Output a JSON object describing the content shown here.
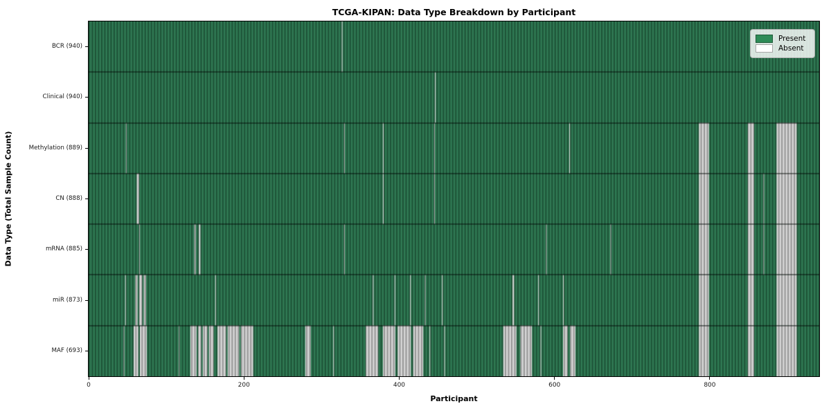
{
  "title": "TCGA-KIPAN: Data Type Breakdown by Participant",
  "xlabel": "Participant",
  "ylabel": "Data Type (Total Sample Count)",
  "legend": {
    "present_label": "Present",
    "absent_label": "Absent",
    "position": "upper right"
  },
  "colors": {
    "present_legend": "#2e8b57",
    "absent_legend": "#ffffff",
    "present_base": "#2b7750",
    "absent_base": "#d6d6d6",
    "row_separator": "rgba(0,0,0,0.85)",
    "axis": "#000000"
  },
  "chart_data": {
    "type": "heatmap",
    "title": "TCGA-KIPAN: Data Type Breakdown by Participant",
    "xlabel": "Participant",
    "ylabel": "Data Type (Total Sample Count)",
    "legend_entries": [
      "Present",
      "Absent"
    ],
    "legend_position": "upper right",
    "grid": false,
    "n_participants": 941,
    "xlim": [
      0,
      941
    ],
    "x_ticks": [
      0,
      200,
      400,
      600,
      800
    ],
    "value_encoding": {
      "present": 1,
      "absent": 0
    },
    "rows": [
      {
        "label": "BCR (940)",
        "data_type": "BCR",
        "present_count": 940,
        "absent_ranges": [
          [
            326,
            326
          ]
        ]
      },
      {
        "label": "Clinical (940)",
        "data_type": "Clinical",
        "present_count": 940,
        "absent_ranges": [
          [
            446,
            446
          ]
        ]
      },
      {
        "label": "Methylation (889)",
        "data_type": "Methylation",
        "present_count": 889,
        "absent_ranges": [
          [
            48,
            48
          ],
          [
            329,
            329
          ],
          [
            379,
            379
          ],
          [
            445,
            445
          ],
          [
            619,
            619
          ],
          [
            786,
            798
          ],
          [
            849,
            856
          ],
          [
            886,
            911
          ]
        ]
      },
      {
        "label": "CN (888)",
        "data_type": "CN",
        "present_count": 888,
        "absent_ranges": [
          [
            62,
            64
          ],
          [
            379,
            379
          ],
          [
            445,
            445
          ],
          [
            786,
            798
          ],
          [
            849,
            856
          ],
          [
            869,
            869
          ],
          [
            886,
            911
          ]
        ]
      },
      {
        "label": "mRNA (885)",
        "data_type": "mRNA",
        "present_count": 885,
        "absent_ranges": [
          [
            65,
            65
          ],
          [
            136,
            137
          ],
          [
            142,
            143
          ],
          [
            329,
            329
          ],
          [
            589,
            589
          ],
          [
            672,
            672
          ],
          [
            786,
            798
          ],
          [
            849,
            856
          ],
          [
            869,
            869
          ],
          [
            886,
            911
          ]
        ]
      },
      {
        "label": "miR (873)",
        "data_type": "miR",
        "present_count": 873,
        "absent_ranges": [
          [
            47,
            47
          ],
          [
            60,
            62
          ],
          [
            65,
            68
          ],
          [
            71,
            73
          ],
          [
            163,
            163
          ],
          [
            366,
            366
          ],
          [
            394,
            394
          ],
          [
            414,
            414
          ],
          [
            433,
            433
          ],
          [
            455,
            455
          ],
          [
            546,
            547
          ],
          [
            579,
            579
          ],
          [
            611,
            611
          ],
          [
            786,
            798
          ],
          [
            849,
            856
          ],
          [
            886,
            911
          ]
        ]
      },
      {
        "label": "MAF (693)",
        "data_type": "MAF",
        "present_count": 693,
        "absent_ranges": [
          [
            45,
            45
          ],
          [
            58,
            63
          ],
          [
            66,
            74
          ],
          [
            116,
            116
          ],
          [
            131,
            138
          ],
          [
            141,
            144
          ],
          [
            147,
            152
          ],
          [
            155,
            160
          ],
          [
            166,
            176
          ],
          [
            179,
            193
          ],
          [
            196,
            211
          ],
          [
            279,
            285
          ],
          [
            315,
            315
          ],
          [
            357,
            372
          ],
          [
            379,
            394
          ],
          [
            398,
            414
          ],
          [
            418,
            430
          ],
          [
            439,
            439
          ],
          [
            458,
            458
          ],
          [
            534,
            550
          ],
          [
            556,
            570
          ],
          [
            582,
            582
          ],
          [
            611,
            616
          ],
          [
            620,
            626
          ],
          [
            786,
            798
          ],
          [
            849,
            856
          ],
          [
            886,
            911
          ]
        ]
      }
    ]
  }
}
